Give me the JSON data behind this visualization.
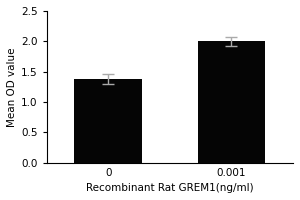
{
  "categories": [
    "0",
    "0.001"
  ],
  "values": [
    1.38,
    2.0
  ],
  "errors": [
    0.08,
    0.07
  ],
  "bar_color": "#050505",
  "bar_width": 0.55,
  "bar_positions": [
    1,
    2
  ],
  "ylabel": "Mean OD value",
  "xlabel": "Recombinant Rat GREM1(ng/ml)",
  "ylim": [
    0,
    2.5
  ],
  "yticks": [
    0.0,
    0.5,
    1.0,
    1.5,
    2.0,
    2.5
  ],
  "xlabel_fontsize": 7.5,
  "ylabel_fontsize": 7.5,
  "tick_fontsize": 7.5,
  "error_capsize": 4,
  "error_color": "#aaaaaa",
  "error_linewidth": 1.0,
  "background_color": "#ffffff"
}
